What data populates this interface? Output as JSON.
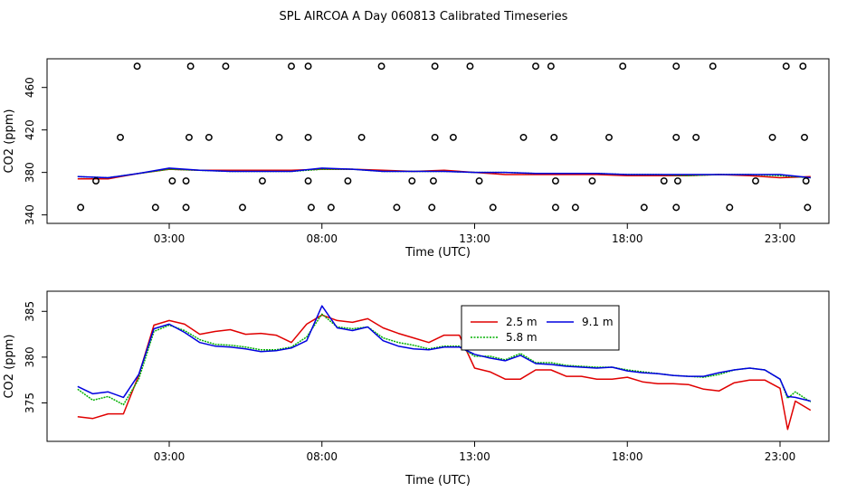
{
  "figure": {
    "title": "SPL AIRCOA A  Day 060813  Calibrated Timeseries"
  },
  "colors": {
    "s25": "#e00000",
    "s58": "#00b000",
    "s91": "#0000e0"
  },
  "chart_data": [
    {
      "type": "line",
      "title": "SPL AIRCOA A  Day 060813  Calibrated Timeseries",
      "xlabel": "Time (UTC)",
      "ylabel": "CO2 (ppm)",
      "xlim": [
        -1,
        24.6
      ],
      "ylim": [
        332,
        487
      ],
      "xticks": [
        3,
        8,
        13,
        18,
        23
      ],
      "xtick_labels": [
        "03:00",
        "08:00",
        "13:00",
        "18:00",
        "23:00"
      ],
      "yticks": [
        340,
        380,
        420,
        460
      ],
      "ytick_labels": [
        "340",
        "380",
        "420",
        "460"
      ],
      "open_circles": {
        "y_high": 480,
        "x_high": [
          1.95,
          3.7,
          4.85,
          7.0,
          7.55,
          9.95,
          11.7,
          12.85,
          15.0,
          15.5,
          17.85,
          19.6,
          20.8,
          23.2,
          23.75
        ],
        "y_mid": 413,
        "x_mid": [
          1.4,
          3.65,
          4.3,
          6.6,
          7.55,
          9.3,
          11.7,
          12.3,
          14.6,
          15.6,
          17.4,
          19.6,
          20.25,
          22.75,
          23.8
        ],
        "y_low_upper": 372,
        "x_low_upper": [
          0.6,
          3.1,
          3.55,
          6.05,
          7.55,
          8.85,
          10.95,
          11.65,
          13.15,
          15.65,
          16.85,
          19.2,
          19.65,
          22.2,
          23.85
        ],
        "y_low": 347,
        "x_low": [
          0.1,
          2.55,
          3.55,
          5.4,
          7.65,
          8.3,
          10.45,
          11.6,
          13.6,
          15.65,
          16.3,
          18.55,
          19.6,
          21.35,
          23.9
        ]
      },
      "series": [
        {
          "name": "2.5 m",
          "color": "#e00000",
          "x": [
            0,
            1,
            2,
            3,
            4,
            5,
            6,
            7,
            8,
            9,
            10,
            11,
            12,
            13,
            14,
            15,
            16,
            17,
            18,
            19,
            20,
            21,
            22,
            23,
            24
          ],
          "values": [
            374,
            374,
            379,
            383,
            382,
            382,
            382,
            382,
            383,
            383,
            382,
            381,
            382,
            380,
            378,
            378,
            378,
            378,
            377,
            377,
            377,
            378,
            377,
            375,
            376
          ]
        },
        {
          "name": "5.8 m",
          "color": "#00b000",
          "x": [
            0,
            1,
            2,
            3,
            4,
            5,
            6,
            7,
            8,
            9,
            10,
            11,
            12,
            13,
            14,
            15,
            16,
            17,
            18,
            19,
            20,
            21,
            22,
            23,
            24
          ],
          "values": [
            376,
            375,
            379,
            383,
            382,
            381,
            381,
            381,
            383,
            383,
            381,
            381,
            381,
            380,
            380,
            379,
            379,
            379,
            378,
            378,
            377,
            378,
            378,
            377,
            375
          ]
        },
        {
          "name": "9.1 m",
          "color": "#0000e0",
          "x": [
            0,
            1,
            2,
            3,
            4,
            5,
            6,
            7,
            8,
            9,
            10,
            11,
            12,
            13,
            14,
            15,
            16,
            17,
            18,
            19,
            20,
            21,
            22,
            23,
            24
          ],
          "values": [
            376,
            375,
            379,
            384,
            382,
            381,
            381,
            381,
            384,
            383,
            381,
            381,
            381,
            380,
            380,
            379,
            379,
            379,
            378,
            378,
            378,
            378,
            378,
            378,
            375
          ]
        }
      ]
    },
    {
      "type": "line",
      "xlabel": "Time (UTC)",
      "ylabel": "CO2 (ppm)",
      "xlim": [
        -1,
        24.6
      ],
      "ylim": [
        370.8,
        387.2
      ],
      "xticks": [
        3,
        8,
        13,
        18,
        23
      ],
      "xtick_labels": [
        "03:00",
        "08:00",
        "13:00",
        "18:00",
        "23:00"
      ],
      "yticks": [
        375,
        380,
        385
      ],
      "ytick_labels": [
        "375",
        "380",
        "385"
      ],
      "legend": {
        "position": "top-center",
        "entries": [
          "2.5 m",
          "9.1 m",
          "5.8 m"
        ]
      },
      "series": [
        {
          "name": "2.5 m",
          "color": "#e00000",
          "x": [
            0,
            0.5,
            1,
            1.5,
            2,
            2.5,
            3,
            3.5,
            4,
            4.5,
            5,
            5.5,
            6,
            6.5,
            7,
            7.5,
            8,
            8.5,
            9,
            9.5,
            10,
            10.5,
            11,
            11.5,
            12,
            12.5,
            13,
            13.5,
            14,
            14.5,
            15,
            15.5,
            16,
            16.5,
            17,
            17.5,
            18,
            18.5,
            19,
            19.5,
            20,
            20.5,
            21,
            21.5,
            22,
            22.5,
            23,
            23.25,
            23.5,
            24
          ],
          "values": [
            373.5,
            373.3,
            373.8,
            373.8,
            378,
            383.5,
            384,
            383.6,
            382.5,
            382.8,
            383,
            382.5,
            382.6,
            382.4,
            381.6,
            383.6,
            384.6,
            384,
            383.8,
            384.2,
            383.2,
            382.6,
            382.1,
            381.6,
            382.4,
            382.4,
            378.8,
            378.4,
            377.6,
            377.6,
            378.6,
            378.6,
            377.9,
            377.9,
            377.6,
            377.6,
            377.8,
            377.3,
            377.1,
            377.1,
            377,
            376.5,
            376.3,
            377.2,
            377.5,
            377.5,
            376.6,
            372.1,
            375.2,
            374.2
          ]
        },
        {
          "name": "5.8 m",
          "color": "#00b000",
          "x": [
            0,
            0.5,
            1,
            1.5,
            2,
            2.5,
            3,
            3.5,
            4,
            4.5,
            5,
            5.5,
            6,
            6.5,
            7,
            7.5,
            8,
            8.5,
            9,
            9.5,
            10,
            10.5,
            11,
            11.5,
            12,
            12.5,
            13,
            13.5,
            14,
            14.5,
            15,
            15.5,
            16,
            16.5,
            17,
            17.5,
            18,
            18.5,
            19,
            19.5,
            20,
            20.5,
            21,
            21.5,
            22,
            22.5,
            23,
            23.25,
            23.5,
            24
          ],
          "values": [
            376.5,
            375.3,
            375.7,
            374.8,
            377.6,
            382.8,
            383.5,
            382.9,
            381.9,
            381.4,
            381.3,
            381.1,
            380.8,
            380.8,
            381.1,
            382.2,
            384.7,
            383.3,
            383.1,
            383.3,
            382.1,
            381.6,
            381.3,
            380.9,
            381.2,
            381.2,
            380.1,
            380.1,
            379.7,
            380.4,
            379.4,
            379.4,
            379.1,
            379,
            378.9,
            378.9,
            378.6,
            378.4,
            378.2,
            378,
            377.9,
            377.8,
            378.1,
            378.6,
            378.8,
            378.6,
            377.6,
            375.5,
            376.2,
            375.1
          ]
        },
        {
          "name": "9.1 m",
          "color": "#0000e0",
          "x": [
            0,
            0.5,
            1,
            1.5,
            2,
            2.5,
            3,
            3.5,
            4,
            4.5,
            5,
            5.5,
            6,
            6.5,
            7,
            7.5,
            8,
            8.5,
            9,
            9.5,
            10,
            10.5,
            11,
            11.5,
            12,
            12.5,
            13,
            13.5,
            14,
            14.5,
            15,
            15.5,
            16,
            16.5,
            17,
            17.5,
            18,
            18.5,
            19,
            19.5,
            20,
            20.5,
            21,
            21.5,
            22,
            22.5,
            23,
            23.25,
            23.5,
            24
          ],
          "values": [
            376.8,
            376,
            376.2,
            375.6,
            378.1,
            383.1,
            383.6,
            382.7,
            381.6,
            381.2,
            381.1,
            380.9,
            380.6,
            380.7,
            381,
            381.8,
            385.6,
            383.2,
            382.9,
            383.3,
            381.8,
            381.2,
            380.9,
            380.8,
            381.1,
            381.1,
            380.3,
            379.9,
            379.6,
            380.2,
            379.3,
            379.2,
            379,
            378.9,
            378.8,
            378.9,
            378.5,
            378.3,
            378.2,
            378,
            377.9,
            377.9,
            378.3,
            378.6,
            378.8,
            378.6,
            377.6,
            375.7,
            375.6,
            375.2
          ]
        }
      ]
    }
  ]
}
